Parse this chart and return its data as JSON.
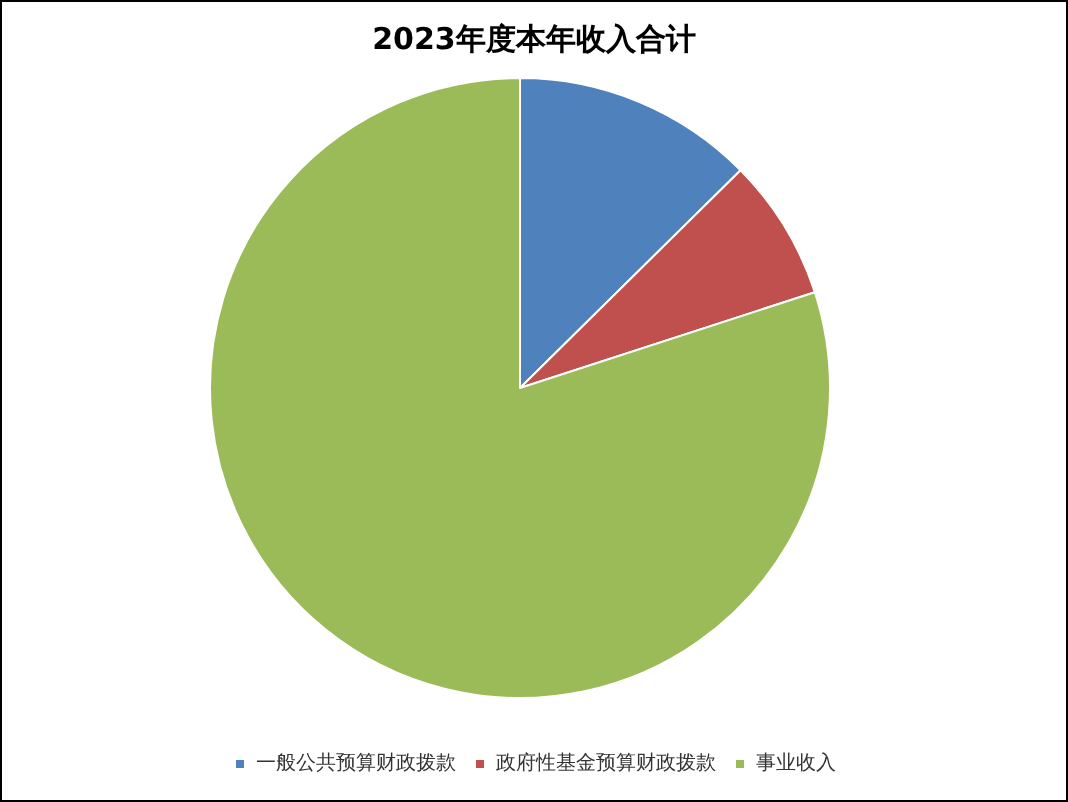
{
  "chart_data": {
    "type": "pie",
    "title": "2023年度本年收入合计",
    "categories": [
      "一般公共预算财政拨款",
      "政府性基金预算财政拨款",
      "事业收入"
    ],
    "values": [
      12.6,
      7.4,
      80
    ],
    "colors": [
      "#4f81bd",
      "#c0504d",
      "#9bbb59"
    ],
    "legend": "bottom"
  }
}
